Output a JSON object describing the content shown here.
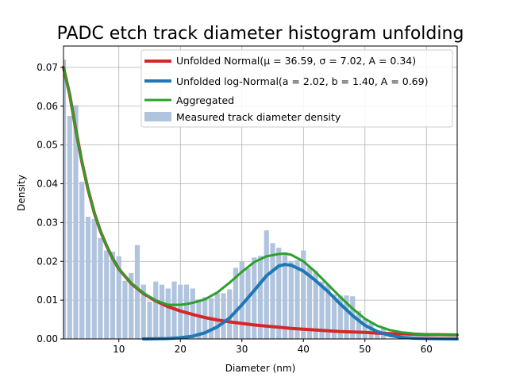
{
  "chart_data": {
    "type": "bar",
    "title": "PADC etch track diameter histogram unfolding",
    "xlabel": "Diameter (nm)",
    "ylabel": "Density",
    "xlim": [
      1,
      65
    ],
    "ylim": [
      0,
      0.0755
    ],
    "xticks": [
      10,
      20,
      30,
      40,
      50,
      60
    ],
    "yticks": [
      0.0,
      0.01,
      0.02,
      0.03,
      0.04,
      0.05,
      0.06,
      0.07
    ],
    "grid": true,
    "legend_position": "top-right",
    "bars": {
      "name": "Measured track diameter density",
      "color": "#b0c4de",
      "width": 0.8,
      "x": [
        1,
        2,
        3,
        4,
        5,
        6,
        7,
        8,
        9,
        10,
        11,
        12,
        13,
        14,
        15,
        16,
        17,
        18,
        19,
        20,
        21,
        22,
        23,
        24,
        25,
        26,
        27,
        28,
        29,
        30,
        31,
        32,
        33,
        34,
        35,
        36,
        37,
        38,
        39,
        40,
        41,
        42,
        43,
        44,
        45,
        46,
        47,
        48,
        49,
        50,
        51,
        52,
        53,
        54,
        55,
        56,
        57,
        58,
        59,
        60,
        61,
        62,
        63,
        64,
        65
      ],
      "values": [
        0.072,
        0.0575,
        0.0603,
        0.0405,
        0.0315,
        0.0309,
        0.026,
        0.0228,
        0.0225,
        0.0213,
        0.015,
        0.017,
        0.0242,
        0.014,
        0.0096,
        0.0148,
        0.014,
        0.013,
        0.0148,
        0.014,
        0.014,
        0.013,
        0.0102,
        0.0108,
        0.0105,
        0.0118,
        0.0118,
        0.0128,
        0.0183,
        0.02,
        0.0182,
        0.021,
        0.0214,
        0.028,
        0.0247,
        0.0235,
        0.0223,
        0.02,
        0.0203,
        0.0228,
        0.0185,
        0.0175,
        0.0148,
        0.014,
        0.0115,
        0.0112,
        0.0112,
        0.011,
        0.0072,
        0.0052,
        0.0042,
        0.0022,
        0.0028,
        0.0,
        0.0,
        0.0,
        0.0,
        0.0,
        0.0,
        0.0,
        0.0,
        0.0,
        0.0,
        0.0,
        0.0
      ]
    },
    "series": [
      {
        "name": "Unfolded Normal",
        "legend_label": "Unfolded Normal(μ = 36.59, σ = 7.02, A = 0.34)",
        "color": "#d62728",
        "x": [
          1,
          2,
          3,
          4,
          5,
          6,
          7,
          8,
          9,
          10,
          12,
          14,
          16,
          18,
          20,
          22,
          24,
          26,
          28,
          30,
          32,
          34,
          36,
          38,
          40,
          42,
          44,
          46,
          48,
          50,
          52,
          54,
          56,
          58,
          60,
          62,
          65
        ],
        "values": [
          0.07,
          0.063,
          0.054,
          0.0455,
          0.0385,
          0.0325,
          0.0278,
          0.024,
          0.0207,
          0.018,
          0.0143,
          0.0117,
          0.0098,
          0.0083,
          0.0072,
          0.0063,
          0.0055,
          0.0049,
          0.0044,
          0.004,
          0.0036,
          0.0033,
          0.003,
          0.0027,
          0.0025,
          0.0023,
          0.0021,
          0.0019,
          0.0018,
          0.0017,
          0.0015,
          0.0014,
          0.0013,
          0.0012,
          0.0011,
          0.0011,
          0.001
        ]
      },
      {
        "name": "Unfolded log-Normal",
        "legend_label": "Unfolded log-Normal(a = 2.02, b = 1.40, A = 0.69)",
        "color": "#1f77b4",
        "x": [
          14,
          16,
          18,
          20,
          22,
          24,
          26,
          28,
          30,
          32,
          34,
          36,
          37,
          38,
          40,
          42,
          44,
          46,
          48,
          50,
          52,
          54,
          56,
          58,
          60,
          62,
          65
        ],
        "values": [
          0.0,
          5e-05,
          0.0001,
          0.0003,
          0.0007,
          0.0016,
          0.0031,
          0.0054,
          0.0088,
          0.0125,
          0.0163,
          0.0188,
          0.0192,
          0.019,
          0.0175,
          0.015,
          0.0122,
          0.009,
          0.006,
          0.0035,
          0.0019,
          0.0009,
          0.0004,
          0.0002,
          0.0001,
          5e-05,
          0.0
        ]
      },
      {
        "name": "Aggregated",
        "legend_label": "Aggregated",
        "color": "#2ca02c",
        "x": [
          1,
          2,
          3,
          4,
          5,
          6,
          7,
          8,
          9,
          10,
          12,
          14,
          16,
          18,
          20,
          21,
          22,
          24,
          26,
          28,
          30,
          32,
          34,
          36,
          37,
          38,
          40,
          42,
          44,
          46,
          48,
          50,
          52,
          54,
          56,
          58,
          60,
          62,
          65
        ],
        "values": [
          0.07,
          0.063,
          0.054,
          0.0455,
          0.0385,
          0.0325,
          0.0278,
          0.024,
          0.0207,
          0.018,
          0.0144,
          0.0118,
          0.0099,
          0.0088,
          0.0088,
          0.009,
          0.0093,
          0.0102,
          0.012,
          0.0145,
          0.0173,
          0.0198,
          0.0213,
          0.0219,
          0.022,
          0.0217,
          0.02,
          0.0172,
          0.014,
          0.0108,
          0.0078,
          0.0052,
          0.0034,
          0.0023,
          0.0017,
          0.0014,
          0.0012,
          0.0011,
          0.001
        ]
      }
    ]
  }
}
